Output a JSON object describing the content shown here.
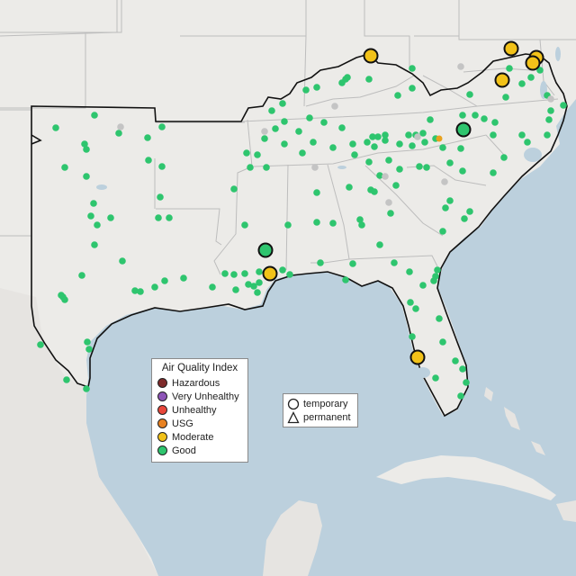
{
  "legend": {
    "title": "Air Quality Index",
    "categories": [
      {
        "label": "Hazardous",
        "color": "#7e2b2b"
      },
      {
        "label": "Very Unhealthy",
        "color": "#8e55b8"
      },
      {
        "label": "Unhealthy",
        "color": "#e8473b"
      },
      {
        "label": "USG",
        "color": "#e88222"
      },
      {
        "label": "Moderate",
        "color": "#f2c219"
      },
      {
        "label": "Good",
        "color": "#2ec56e"
      }
    ]
  },
  "shape_legend": {
    "temporary": "temporary",
    "permanent": "permanent"
  },
  "colors": {
    "water": "#bcd0dd",
    "land": "#ecebe8",
    "region": "#e6e4e1",
    "good": "#2ec56e",
    "moderate": "#f2c219",
    "usg": "#e8a21d",
    "nodata": "#c4c4c4"
  },
  "large_markers": [
    {
      "name": "moderate-marker-ny",
      "category": "Moderate"
    },
    {
      "name": "moderate-marker-pa-1",
      "category": "Moderate"
    },
    {
      "name": "moderate-marker-pa-2",
      "category": "Moderate"
    },
    {
      "name": "moderate-marker-md-1",
      "category": "Moderate"
    },
    {
      "name": "moderate-marker-md-2",
      "category": "Moderate"
    },
    {
      "name": "moderate-marker-la",
      "category": "Moderate"
    },
    {
      "name": "moderate-marker-fl",
      "category": "Moderate"
    },
    {
      "name": "good-marker-nc",
      "category": "Good"
    },
    {
      "name": "good-marker-ms",
      "category": "Good"
    }
  ]
}
